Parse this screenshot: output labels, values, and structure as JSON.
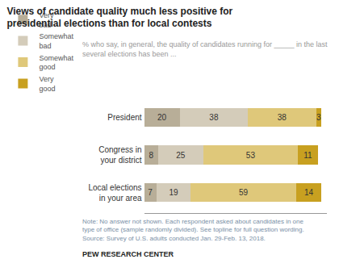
{
  "chart_data": {
    "type": "bar",
    "orientation": "horizontal",
    "stacked": true,
    "title": "Views of candidate quality much less positive for\npresidential elections than for local contests",
    "subtitle": "% who say, in general, the quality of candidates running for _____ in the last\nseveral elections has been ...",
    "categories": [
      "President",
      "Congress in\nyour district",
      "Local elections\nin your area"
    ],
    "series": [
      {
        "name": "Very\nbad",
        "color": "#b8ae98",
        "values": [
          20,
          8,
          7
        ]
      },
      {
        "name": "Somewhat\nbad",
        "color": "#d4ccba",
        "values": [
          38,
          25,
          19
        ]
      },
      {
        "name": "Somewhat\ngood",
        "color": "#dfc87a",
        "values": [
          38,
          53,
          59
        ]
      },
      {
        "name": "Very\ngood",
        "color": "#c8a020",
        "values": [
          3,
          11,
          14
        ]
      }
    ],
    "xlim": [
      0,
      102
    ],
    "data_labels": true,
    "tick_labels": "y",
    "grid": false,
    "legend": "top",
    "annotations": [
      "Note: No answer not shown. Each respondent asked about candidates in one\ntype of office (sample randomly divided). See topline for full question wording.\nSource: Survey of U.S. adults conducted Jan. 29-Feb. 13, 2018.",
      "PEW RESEARCH CENTER"
    ]
  }
}
